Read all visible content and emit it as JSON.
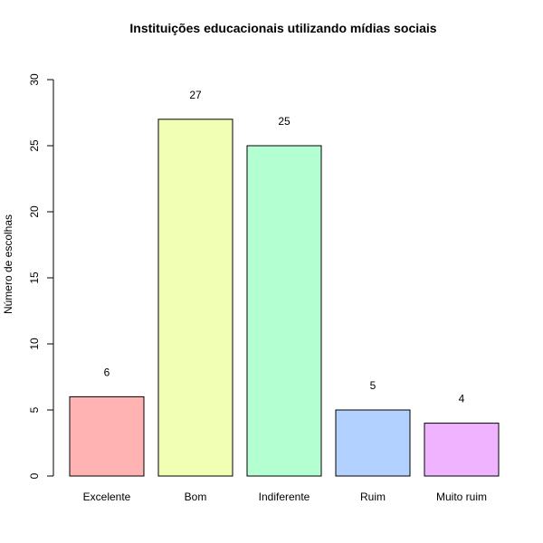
{
  "chart_data": {
    "type": "bar",
    "title": "Instituições educacionais utilizando mídias sociais",
    "xlabel": "",
    "ylabel": "Número de escolhas",
    "categories": [
      "Excelente",
      "Bom",
      "Indiferente",
      "Ruim",
      "Muito ruim"
    ],
    "values": [
      6,
      27,
      25,
      5,
      4
    ],
    "data_labels": [
      "6",
      "27",
      "25",
      "5",
      "4"
    ],
    "colors": [
      "#FFB3B3",
      "#F0FFB3",
      "#B3FFD1",
      "#B3D1FF",
      "#F0B3FF"
    ],
    "ylim": [
      0,
      30
    ],
    "yticks": [
      0,
      5,
      10,
      15,
      20,
      25,
      30
    ],
    "grid": false,
    "legend": "none"
  }
}
